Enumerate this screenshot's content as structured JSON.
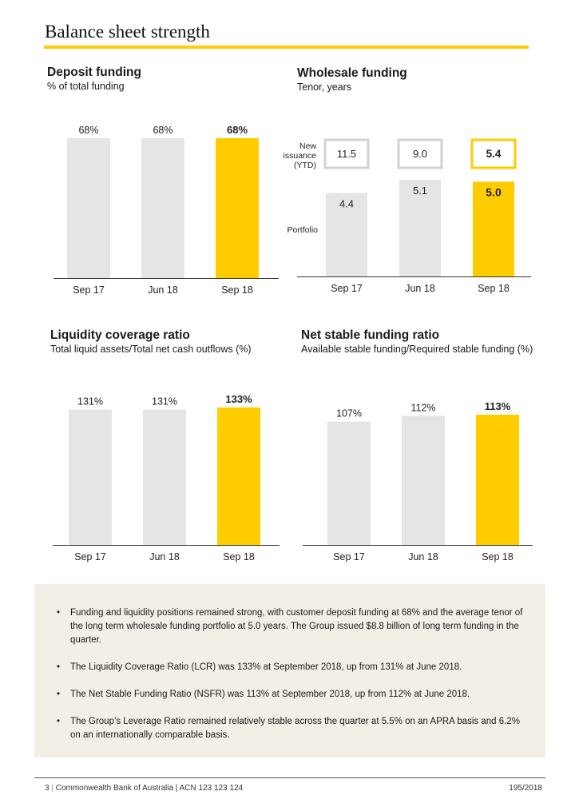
{
  "page": {
    "title": "Balance sheet strength"
  },
  "colors": {
    "accent": "#ffcc00",
    "bar_default": "#e7e5e4",
    "commentary_bg": "#f3efe6"
  },
  "chart_data": [
    {
      "id": "deposit",
      "type": "bar",
      "title": "Deposit funding",
      "subtitle": "% of total funding",
      "categories": [
        "Sep 17",
        "Jun 18",
        "Sep 18"
      ],
      "values": [
        68,
        68,
        68
      ],
      "labels": [
        "68%",
        "68%",
        "68%"
      ],
      "highlight_index": 2,
      "ylim": [
        0,
        68
      ]
    },
    {
      "id": "wholesale",
      "type": "bar",
      "title": "Wholesale funding",
      "subtitle": "Tenor, years",
      "categories": [
        "Sep 17",
        "Jun 18",
        "Sep 18"
      ],
      "series": [
        {
          "name": "Portfolio",
          "values": [
            4.4,
            5.1,
            5.0
          ],
          "labels": [
            "4.4",
            "5.1",
            "5.0"
          ]
        },
        {
          "name": "New issuance (YTD)",
          "values": [
            11.5,
            9.0,
            5.4
          ],
          "labels": [
            "11.5",
            "9.0",
            "5.4"
          ]
        }
      ],
      "row_labels": {
        "portfolio": "Portfolio",
        "issuance": [
          "New",
          "issuance",
          "(YTD)"
        ]
      },
      "highlight_index": 2,
      "ylim": [
        0,
        5.1
      ]
    },
    {
      "id": "lcr",
      "type": "bar",
      "title": "Liquidity coverage ratio",
      "subtitle": "Total liquid assets/Total net cash outflows (%)",
      "categories": [
        "Sep 17",
        "Jun 18",
        "Sep 18"
      ],
      "values": [
        131,
        131,
        133
      ],
      "labels": [
        "131%",
        "131%",
        "133%"
      ],
      "highlight_index": 2,
      "ylim": [
        0,
        133
      ]
    },
    {
      "id": "nsfr",
      "type": "bar",
      "title": "Net stable funding ratio",
      "subtitle": "Available stable funding/Required stable funding (%)",
      "categories": [
        "Sep 17",
        "Jun 18",
        "Sep 18"
      ],
      "values": [
        107,
        112,
        113
      ],
      "labels": [
        "107%",
        "112%",
        "113%"
      ],
      "highlight_index": 2,
      "ylim": [
        0,
        113
      ]
    }
  ],
  "commentary": {
    "items": [
      "Funding and liquidity positions remained strong, with customer deposit funding at 68% and the average tenor of the long term wholesale funding portfolio at 5.0 years. The Group issued $8.8 billion of long term funding in the quarter.",
      "The Liquidity Coverage Ratio (LCR) was 133% at September 2018, up from 131% at June 2018.",
      "The Net Stable Funding Ratio (NSFR) was 113% at September 2018, up from 112% at June 2018.",
      "The Group’s Leverage Ratio remained relatively stable across the quarter at 5.5% on an APRA basis and 6.2% on an internationally comparable basis."
    ]
  },
  "footer": {
    "page_number": "3",
    "separator": "|",
    "company": "Commonwealth Bank of Australia | ACN 123 123 124",
    "doc_code": "195/2018"
  }
}
